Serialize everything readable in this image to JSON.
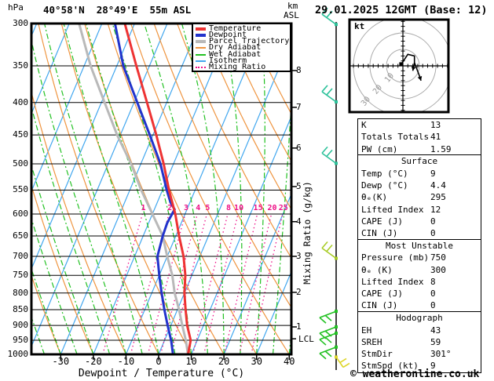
{
  "header": {
    "pressure_unit": "hPa",
    "title": "40°58'N  28°49'E  55m ASL",
    "km_label": "km",
    "asl_label": "ASL",
    "datetime": "29.01.2025 12GMT (Base: 12)"
  },
  "legend": {
    "items": [
      {
        "label": "Temperature",
        "color": "#ee3333",
        "thick": true,
        "dotted": false
      },
      {
        "label": "Dewpoint",
        "color": "#2233cc",
        "thick": true,
        "dotted": false
      },
      {
        "label": "Parcel Trajectory",
        "color": "#b9b9b9",
        "thick": true,
        "dotted": false
      },
      {
        "label": "Dry Adiabat",
        "color": "#ef9540",
        "thick": false,
        "dotted": false
      },
      {
        "label": "Wet Adiabat",
        "color": "#22c122",
        "thick": false,
        "dotted": false
      },
      {
        "label": "Isotherm",
        "color": "#42a7ef",
        "thick": false,
        "dotted": false
      },
      {
        "label": "Mixing Ratio",
        "color": "#ee1188",
        "thick": false,
        "dotted": true
      }
    ]
  },
  "axes": {
    "pressure_ticks": [
      300,
      350,
      400,
      450,
      500,
      550,
      600,
      650,
      700,
      750,
      800,
      850,
      900,
      950,
      1000
    ],
    "temp_ticks": [
      -30,
      -20,
      -10,
      0,
      10,
      20,
      30,
      40
    ],
    "xlabel": "Dewpoint / Temperature (°C)",
    "lcl": "LCL",
    "mixing_axis_label": "Mixing Ratio (g/kg)"
  },
  "hodograph": {
    "unit": "kt",
    "ring_labels": [
      "10",
      "20",
      "30"
    ]
  },
  "stats": {
    "panels": [
      {
        "title": null,
        "rows": [
          [
            "K",
            "13"
          ],
          [
            "Totals Totals",
            "41"
          ],
          [
            "PW (cm)",
            "1.59"
          ]
        ]
      },
      {
        "title": "Surface",
        "rows": [
          [
            "Temp (°C)",
            "9"
          ],
          [
            "Dewp (°C)",
            "4.4"
          ],
          [
            "θₑ(K)",
            "295"
          ],
          [
            "Lifted Index",
            "12"
          ],
          [
            "CAPE (J)",
            "0"
          ],
          [
            "CIN (J)",
            "0"
          ]
        ]
      },
      {
        "title": "Most Unstable",
        "rows": [
          [
            "Pressure (mb)",
            "750"
          ],
          [
            "θₑ (K)",
            "300"
          ],
          [
            "Lifted Index",
            "8"
          ],
          [
            "CAPE (J)",
            "0"
          ],
          [
            "CIN (J)",
            "0"
          ]
        ]
      },
      {
        "title": "Hodograph",
        "rows": [
          [
            "EH",
            "43"
          ],
          [
            "SREH",
            "59"
          ],
          [
            "StmDir",
            "301°"
          ],
          [
            "StmSpd (kt)",
            "9"
          ]
        ]
      }
    ]
  },
  "footer": {
    "copyright": "© weatheronline.co.uk"
  },
  "chart_data": {
    "type": "skew-t-log-p-sounding",
    "station": "40°58'N 28°49'E 55m ASL",
    "datetime": "29.01.2025 12GMT (Base: 12)",
    "pressure_axis_hPa": [
      300,
      1000
    ],
    "temp_axis_C": [
      -40,
      40
    ],
    "temperature_profile_p_T": [
      [
        1000,
        9
      ],
      [
        950,
        8
      ],
      [
        900,
        5
      ],
      [
        850,
        2.5
      ],
      [
        800,
        0
      ],
      [
        750,
        -2
      ],
      [
        700,
        -5
      ],
      [
        650,
        -9
      ],
      [
        600,
        -13
      ],
      [
        550,
        -18
      ],
      [
        500,
        -23
      ],
      [
        450,
        -29
      ],
      [
        400,
        -36
      ],
      [
        350,
        -44
      ],
      [
        300,
        -53
      ]
    ],
    "dewpoint_profile_p_T": [
      [
        1000,
        4.4
      ],
      [
        950,
        2
      ],
      [
        900,
        -1
      ],
      [
        850,
        -4
      ],
      [
        800,
        -7
      ],
      [
        750,
        -10
      ],
      [
        700,
        -13
      ],
      [
        650,
        -14
      ],
      [
        620,
        -14.3
      ],
      [
        590,
        -13.8
      ],
      [
        575,
        -16
      ],
      [
        550,
        -18.7
      ],
      [
        500,
        -24
      ],
      [
        450,
        -31
      ],
      [
        400,
        -39
      ],
      [
        350,
        -48
      ],
      [
        300,
        -56
      ]
    ],
    "parcel_profile_p_T": [
      [
        1000,
        9
      ],
      [
        950,
        6.5
      ],
      [
        900,
        3.5
      ],
      [
        850,
        0.5
      ],
      [
        800,
        -3
      ],
      [
        750,
        -6
      ],
      [
        700,
        -10
      ],
      [
        650,
        -14
      ],
      [
        600,
        -20
      ],
      [
        550,
        -26.5
      ],
      [
        500,
        -33
      ],
      [
        450,
        -41
      ],
      [
        400,
        -49
      ],
      [
        350,
        -58
      ],
      [
        300,
        -67
      ]
    ],
    "lcl_hPa": 945,
    "km_asl_to_hPa": {
      "1": 905,
      "2": 798,
      "3": 700,
      "4": 617,
      "5": 543,
      "6": 472,
      "7": 407,
      "8": 356
    },
    "mixing_ratio_lines_g_kg": [
      1,
      2,
      3,
      4,
      5,
      8,
      10,
      15,
      20,
      25
    ],
    "isotherm_step_C": 10,
    "dry_adiabat_step_C": 10,
    "wet_adiabat_step_C": 5,
    "wind_barbs": [
      {
        "hPa": 301,
        "color": "#2ec29b",
        "shape": "up"
      },
      {
        "hPa": 399,
        "color": "#2ec29b",
        "shape": "up"
      },
      {
        "hPa": 499,
        "color": "#2ec29b",
        "shape": "up"
      },
      {
        "hPa": 705,
        "color": "#a8cc26",
        "shape": "up"
      },
      {
        "hPa": 855,
        "color": "#22c122",
        "shape": "down"
      },
      {
        "hPa": 905,
        "color": "#22c122",
        "shape": "down"
      },
      {
        "hPa": 926,
        "color": "#22c122",
        "shape": "down"
      },
      {
        "hPa": 974,
        "color": "#22c122",
        "shape": "down"
      },
      {
        "hPa": 1010,
        "color": "#ded62a",
        "shape": "tail"
      }
    ],
    "hodograph_rings_kt": [
      10,
      20,
      30
    ],
    "hodograph_trace_kt": [
      [
        -1,
        1
      ],
      [
        3,
        7
      ],
      [
        7,
        6
      ],
      [
        7,
        2
      ],
      [
        6,
        -3
      ]
    ],
    "hodograph_branch_kt": [
      [
        7,
        2
      ],
      [
        10,
        -6
      ],
      [
        11,
        -9
      ]
    ]
  }
}
